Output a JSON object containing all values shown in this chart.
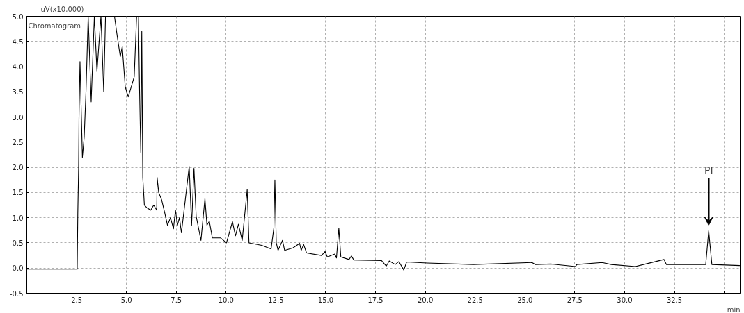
{
  "chart_data": {
    "type": "line",
    "xlabel": "min",
    "ylabel": "uV(x10,000)",
    "annotations": [
      "Chromatogram",
      {
        "text": "PI",
        "x": 34.22,
        "y": 0.74
      }
    ],
    "x": [
      0,
      1.2,
      2.53,
      2.56,
      2.6,
      2.62,
      2.67,
      2.79,
      2.88,
      2.97,
      3.08,
      3.23,
      3.39,
      3.52,
      3.72,
      3.86,
      3.95,
      4.4,
      4.54,
      4.69,
      4.79,
      4.94,
      5.09,
      5.39,
      5.51,
      5.6,
      5.66,
      5.72,
      5.77,
      5.82,
      5.9,
      6.02,
      6.22,
      6.37,
      6.52,
      6.54,
      6.62,
      6.77,
      6.92,
      7.06,
      7.21,
      7.36,
      7.46,
      7.56,
      7.66,
      7.76,
      8.15,
      8.27,
      8.39,
      8.5,
      8.74,
      8.94,
      9.04,
      9.16,
      9.31,
      9.72,
      10.02,
      10.32,
      10.47,
      10.62,
      10.81,
      11.06,
      11.15,
      11.79,
      12.26,
      12.4,
      12.45,
      12.52,
      12.61,
      12.83,
      12.94,
      13.35,
      13.69,
      13.77,
      13.89,
      14.04,
      14.79,
      14.97,
      15.08,
      15.46,
      15.54,
      15.66,
      15.76,
      16.17,
      16.29,
      16.41,
      17.8,
      18.04,
      18.19,
      18.49,
      18.67,
      18.92,
      19.06,
      20.1,
      22.41,
      25.35,
      25.53,
      26.33,
      27.54,
      27.6,
      28.87,
      29.33,
      30.54,
      30.95,
      31.98,
      32.1,
      34.07,
      34.22,
      34.38,
      35.78
    ],
    "series": [
      {
        "color": "#000000",
        "values": [
          -0.02,
          -0.02,
          -0.02,
          1.1,
          2.0,
          3.0,
          4.1,
          2.2,
          2.6,
          3.5,
          5.0,
          3.3,
          5.0,
          3.9,
          5.0,
          3.5,
          5.0,
          5.0,
          4.6,
          4.2,
          4.4,
          3.6,
          3.4,
          3.8,
          5.0,
          5.0,
          3.5,
          2.3,
          4.7,
          1.8,
          1.25,
          1.2,
          1.15,
          1.25,
          1.15,
          1.8,
          1.5,
          1.35,
          1.1,
          0.85,
          1.0,
          0.78,
          1.15,
          0.85,
          1.0,
          0.7,
          2.02,
          0.85,
          1.98,
          1.03,
          0.55,
          1.38,
          0.85,
          0.93,
          0.6,
          0.6,
          0.5,
          0.92,
          0.64,
          0.87,
          0.55,
          1.56,
          0.5,
          0.45,
          0.38,
          0.8,
          1.75,
          0.5,
          0.35,
          0.55,
          0.35,
          0.4,
          0.49,
          0.35,
          0.47,
          0.3,
          0.25,
          0.33,
          0.22,
          0.28,
          0.2,
          0.79,
          0.22,
          0.17,
          0.24,
          0.16,
          0.15,
          0.04,
          0.14,
          0.07,
          0.13,
          -0.04,
          0.12,
          0.1,
          0.07,
          0.11,
          0.07,
          0.08,
          0.03,
          0.07,
          0.11,
          0.07,
          0.03,
          0.07,
          0.17,
          0.07,
          0.07,
          0.74,
          0.07,
          0.05
        ]
      }
    ],
    "xlim": [
      0,
      35.8
    ],
    "xticks": [
      2.5,
      {
        "value": 5,
        "label": "5.0"
      },
      7.5,
      {
        "value": 10,
        "label": "10.0"
      },
      12.5,
      {
        "value": 15,
        "label": "15.0"
      },
      17.5,
      {
        "value": 20,
        "label": "20.0"
      },
      22.5,
      {
        "value": 25,
        "label": "25.0"
      },
      27.5,
      {
        "value": 30,
        "label": "30.0"
      },
      32.5,
      {
        "value": 35,
        "label": null
      }
    ],
    "ylim": [
      -0.5,
      5.0
    ],
    "yticks": [
      -0.5,
      {
        "value": 0,
        "label": "0.0"
      },
      0.5,
      {
        "value": 1,
        "label": "1.0"
      },
      1.5,
      {
        "value": 2,
        "label": "2.0"
      },
      2.5,
      {
        "value": 3,
        "label": "3.0"
      },
      3.5,
      {
        "value": 4,
        "label": "4.0"
      },
      4.5,
      {
        "value": 5,
        "label": "5.0"
      }
    ],
    "grid": true,
    "line_style": "solid",
    "marker": "none"
  }
}
